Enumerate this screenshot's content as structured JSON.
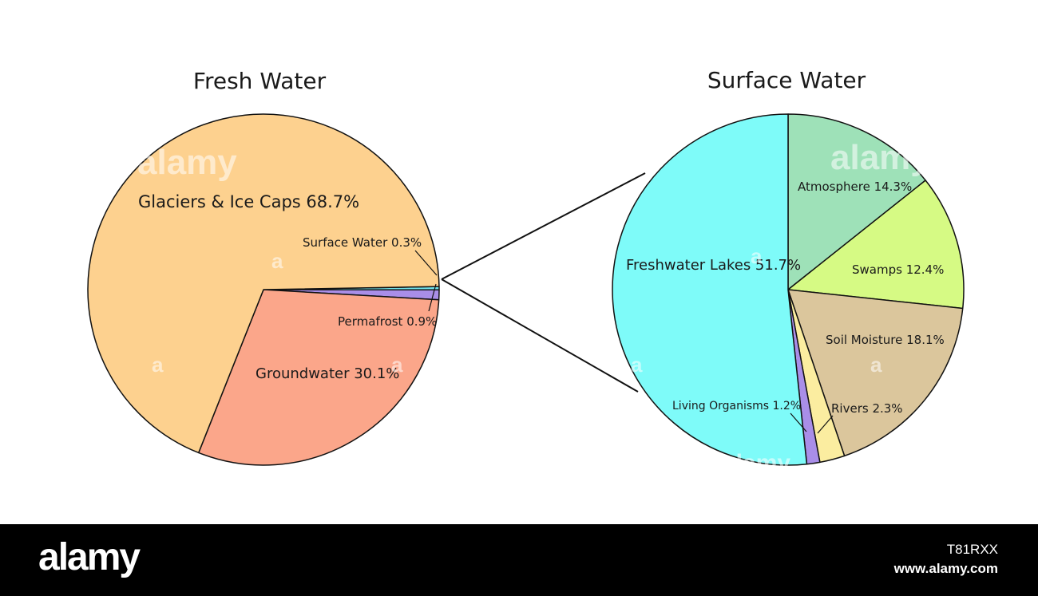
{
  "chart_data": [
    {
      "type": "pie",
      "title": "Fresh Water",
      "slices": [
        {
          "label": "Glaciers & Ice Caps",
          "value": 68.7,
          "display": "Glaciers & Ice Caps 68.7%",
          "color": "#fdd18f"
        },
        {
          "label": "Groundwater",
          "value": 30.1,
          "display": "Groundwater 30.1%",
          "color": "#fba68a"
        },
        {
          "label": "Permafrost",
          "value": 0.9,
          "display": "Permafrost 0.9%",
          "color": "#a98ee8"
        },
        {
          "label": "Surface Water",
          "value": 0.3,
          "display": "Surface Water 0.3%",
          "color": "#6fe4ee"
        }
      ]
    },
    {
      "type": "pie",
      "title": "Surface Water",
      "slices": [
        {
          "label": "Atmosphere",
          "value": 14.3,
          "display": "Atmosphere 14.3%",
          "color": "#9ee1b8"
        },
        {
          "label": "Swamps",
          "value": 12.4,
          "display": "Swamps 12.4%",
          "color": "#d6fa84"
        },
        {
          "label": "Soil Moisture",
          "value": 18.1,
          "display": "Soil Moisture 18.1%",
          "color": "#dbc69c"
        },
        {
          "label": "Rivers",
          "value": 2.3,
          "display": "Rivers 2.3%",
          "color": "#fbeda0"
        },
        {
          "label": "Living Organisms",
          "value": 1.2,
          "display": "Living Organisms 1.2%",
          "color": "#a98ee8"
        },
        {
          "label": "Freshwater Lakes",
          "value": 51.7,
          "display": "Freshwater Lakes 51.7%",
          "color": "#7efbf9"
        }
      ]
    }
  ],
  "watermark": {
    "text": "alamy",
    "small": "a"
  },
  "footer": {
    "logo": "alamy",
    "image_id": "T81RXX",
    "url": "www.alamy.com"
  }
}
